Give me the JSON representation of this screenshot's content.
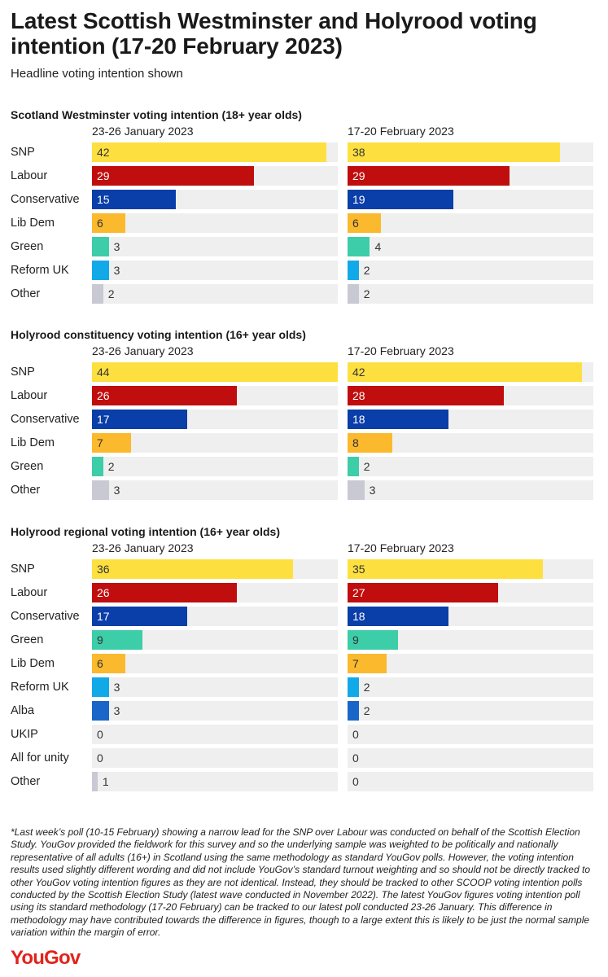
{
  "title": "Latest Scottish Westminster and Holyrood voting intention (17-20 February 2023)",
  "subtitle": "Headline voting intention shown",
  "colors": {
    "SNP": "#fde040",
    "Labour": "#c00d0d",
    "Conservative": "#0a3ea8",
    "Lib Dem": "#fbb92d",
    "Green": "#3dcda8",
    "Reform UK": "#12a9e8",
    "Alba": "#1a66c8",
    "UKIP": "#8b3a9c",
    "All for unity": "#444444",
    "Other": "#c8c9d3",
    "track": "#efefef"
  },
  "chart_data": [
    {
      "type": "bar",
      "title": "Scotland Westminster voting intention (18+ year olds)",
      "categories": [
        "SNP",
        "Labour",
        "Conservative",
        "Lib Dem",
        "Green",
        "Reform UK",
        "Other"
      ],
      "series": [
        {
          "name": "23-26 January 2023",
          "values": [
            42,
            29,
            15,
            6,
            3,
            3,
            2
          ]
        },
        {
          "name": "17-20 February 2023",
          "values": [
            38,
            29,
            19,
            6,
            4,
            2,
            2
          ]
        }
      ],
      "xlim": [
        0,
        44
      ]
    },
    {
      "type": "bar",
      "title": "Holyrood constituency voting intention (16+ year olds)",
      "categories": [
        "SNP",
        "Labour",
        "Conservative",
        "Lib Dem",
        "Green",
        "Other"
      ],
      "series": [
        {
          "name": "23-26 January 2023",
          "values": [
            44,
            26,
            17,
            7,
            2,
            3
          ]
        },
        {
          "name": "17-20 February 2023",
          "values": [
            42,
            28,
            18,
            8,
            2,
            3
          ]
        }
      ],
      "xlim": [
        0,
        44
      ]
    },
    {
      "type": "bar",
      "title": "Holyrood regional voting intention (16+ year olds)",
      "categories": [
        "SNP",
        "Labour",
        "Conservative",
        "Green",
        "Lib Dem",
        "Reform UK",
        "Alba",
        "UKIP",
        "All for unity",
        "Other"
      ],
      "series": [
        {
          "name": "23-26 January 2023",
          "values": [
            36,
            26,
            17,
            9,
            6,
            3,
            3,
            0,
            0,
            1
          ]
        },
        {
          "name": "17-20 February 2023",
          "values": [
            35,
            27,
            18,
            9,
            7,
            2,
            2,
            0,
            0,
            0
          ]
        }
      ],
      "xlim": [
        0,
        44
      ]
    }
  ],
  "footnote": "*Last week’s poll (10-15 February) showing a narrow lead for the SNP over Labour was conducted on behalf of the Scottish Election Study. YouGov provided the fieldwork for this survey and so the underlying sample was weighted to be politically and nationally representative of all adults (16+) in Scotland using the same methodology as standard YouGov polls. However, the voting intention results used slightly different wording and did not include YouGov’s standard turnout weighting and so should not be directly tracked to other YouGov voting intention figures as they are not identical. Instead, they should be tracked to other SCOOP voting intention polls conducted by the Scottish Election Study (latest wave conducted in November 2022). The latest YouGov figures voting intention poll using its standard methodology (17-20 February) can be tracked to our latest poll conducted 23-26 January. This difference in methodology may have contributed towards the difference in figures, though to a large extent this is likely to be just the normal sample variation within the margin of error.",
  "logo": "YouGov"
}
